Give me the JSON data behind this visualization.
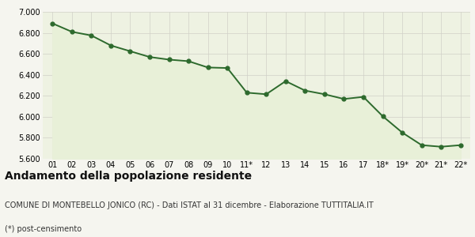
{
  "x_labels": [
    "01",
    "02",
    "03",
    "04",
    "05",
    "06",
    "07",
    "08",
    "09",
    "10",
    "11*",
    "12",
    "13",
    "14",
    "15",
    "16",
    "17",
    "18*",
    "19*",
    "20*",
    "21*",
    "22*"
  ],
  "y_values": [
    6890,
    6810,
    6775,
    6680,
    6625,
    6570,
    6545,
    6530,
    6470,
    6465,
    6230,
    6215,
    6340,
    6250,
    6215,
    6170,
    6190,
    6005,
    5850,
    5730,
    5715,
    5730
  ],
  "ylim": [
    5600,
    7000
  ],
  "yticks": [
    5600,
    5800,
    6000,
    6200,
    6400,
    6600,
    6800,
    7000
  ],
  "line_color": "#2d6a2d",
  "fill_color": "#e8f0d8",
  "marker": "o",
  "marker_size": 3.5,
  "line_width": 1.4,
  "bg_color": "#f5f5ef",
  "plot_bg_color": "#eef2e2",
  "grid_color": "#d0d0c8",
  "title": "Andamento della popolazione residente",
  "subtitle": "COMUNE DI MONTEBELLO JONICO (RC) - Dati ISTAT al 31 dicembre - Elaborazione TUTTITALIA.IT",
  "footnote": "(*) post-censimento",
  "title_fontsize": 10,
  "subtitle_fontsize": 7,
  "footnote_fontsize": 7,
  "tick_fontsize": 7
}
